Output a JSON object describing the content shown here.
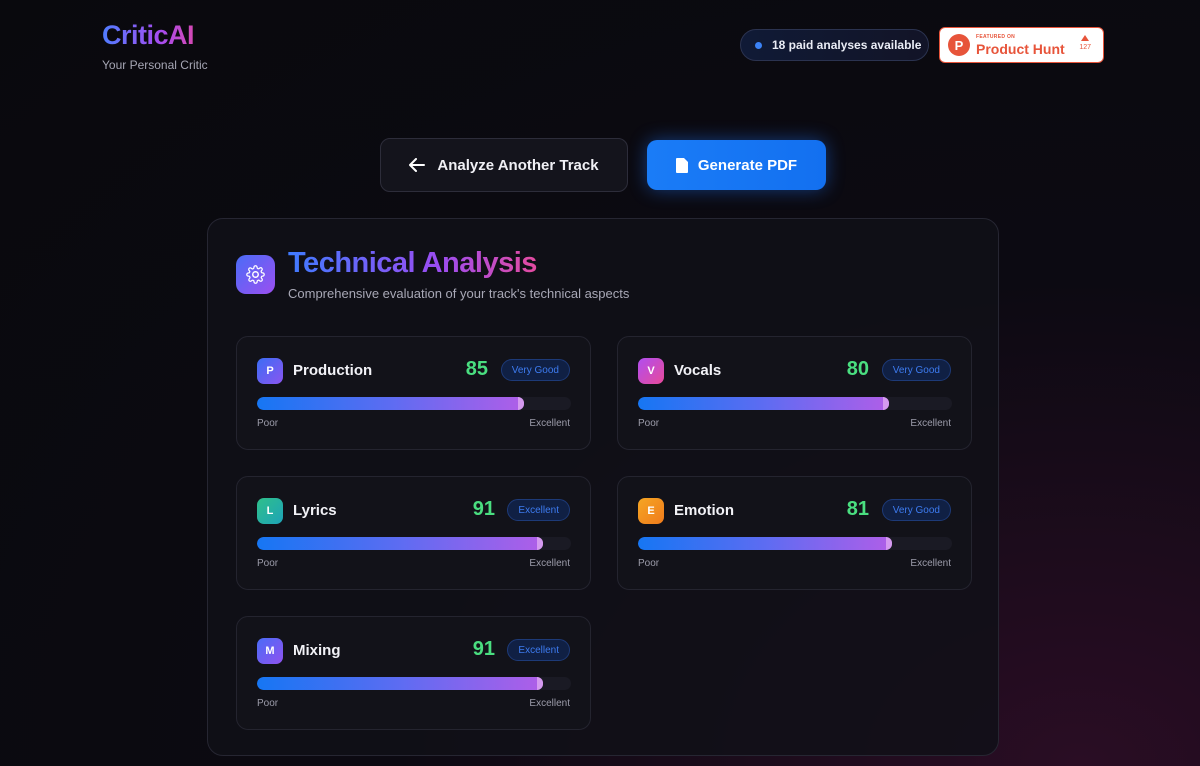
{
  "brand": {
    "name": "CriticAI",
    "tagline": "Your Personal Critic"
  },
  "credits": {
    "label": "18 paid analyses available",
    "dot_color": "#3b82f6"
  },
  "product_hunt": {
    "featured": "FEATURED ON",
    "name": "Product Hunt",
    "votes": "127",
    "color": "#e7543a"
  },
  "actions": {
    "back_label": "Analyze Another Track",
    "pdf_label": "Generate PDF"
  },
  "section": {
    "title": "Technical Analysis",
    "subtitle": "Comprehensive evaluation of your track's technical aspects",
    "icon": "gear-icon"
  },
  "scale": {
    "low": "Poor",
    "high": "Excellent"
  },
  "metrics": [
    {
      "letter": "P",
      "name": "Production",
      "score": "85",
      "rating": "Very Good",
      "fill": 0.85,
      "color": "linear-gradient(135deg,#3b6df5,#8b55f0)"
    },
    {
      "letter": "V",
      "name": "Vocals",
      "score": "80",
      "rating": "Very Good",
      "fill": 0.8,
      "color": "linear-gradient(135deg,#b04ef0,#e84a9a)"
    },
    {
      "letter": "L",
      "name": "Lyrics",
      "score": "91",
      "rating": "Excellent",
      "fill": 0.91,
      "color": "linear-gradient(135deg,#2fc08a,#1ea3b8)"
    },
    {
      "letter": "E",
      "name": "Emotion",
      "score": "81",
      "rating": "Very Good",
      "fill": 0.81,
      "color": "linear-gradient(135deg,#f5a623,#f07b1c)"
    },
    {
      "letter": "M",
      "name": "Mixing",
      "score": "91",
      "rating": "Excellent",
      "fill": 0.91,
      "color": "linear-gradient(135deg,#4a6cf7,#8f52ef)"
    }
  ]
}
